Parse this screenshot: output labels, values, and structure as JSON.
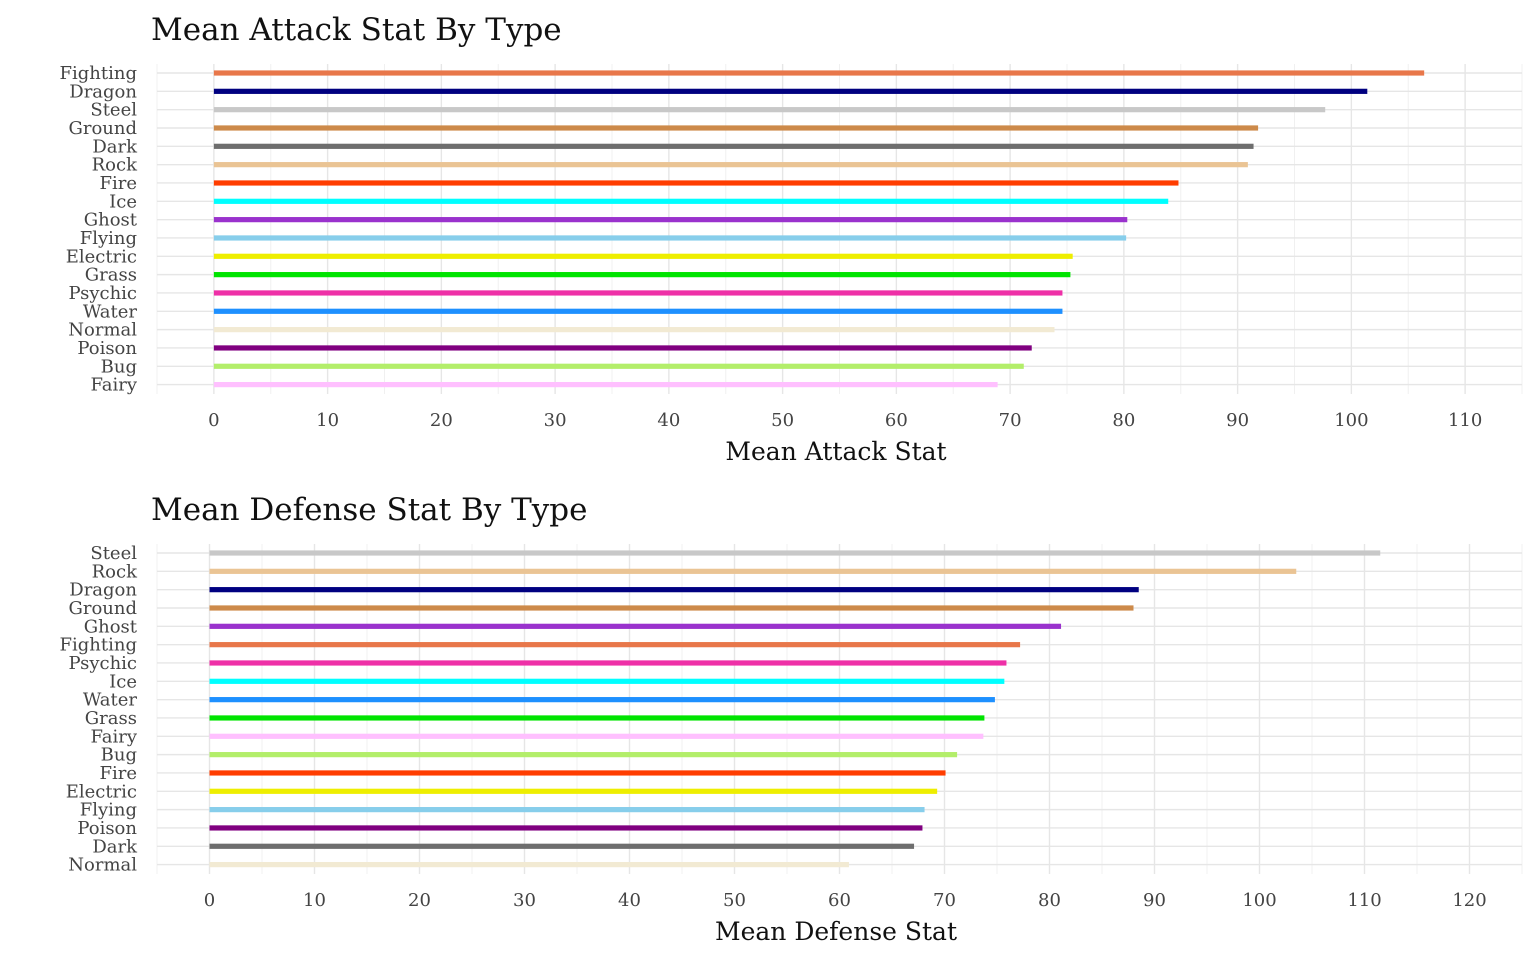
{
  "chart_data": [
    {
      "type": "bar",
      "orientation": "horizontal",
      "title": "Mean Attack Stat By Type",
      "xlabel": "Mean Attack Stat",
      "ylabel": "",
      "xlim": [
        -5,
        115
      ],
      "xticks": [
        "0",
        "10",
        "20",
        "30",
        "40",
        "50",
        "60",
        "70",
        "80",
        "90",
        "100",
        "110"
      ],
      "grid": true,
      "categories": [
        "Fighting",
        "Dragon",
        "Steel",
        "Ground",
        "Dark",
        "Rock",
        "Fire",
        "Ice",
        "Ghost",
        "Flying",
        "Electric",
        "Grass",
        "Psychic",
        "Water",
        "Normal",
        "Poison",
        "Bug",
        "Fairy"
      ],
      "values": [
        106.4,
        101.4,
        97.7,
        91.8,
        91.4,
        90.9,
        84.8,
        83.9,
        80.3,
        80.2,
        75.5,
        75.3,
        74.6,
        74.6,
        73.9,
        71.9,
        71.2,
        68.9
      ],
      "colors": [
        "#E8774A",
        "#000080",
        "#C8C8C8",
        "#CD8A4A",
        "#6E6E6E",
        "#EAC494",
        "#FF3D00",
        "#00FFFF",
        "#9A32CD",
        "#87CEEB",
        "#EEEE00",
        "#00E400",
        "#EE30A7",
        "#1E90FF",
        "#F2EAD3",
        "#800080",
        "#B3EE6A",
        "#FFC0FF"
      ]
    },
    {
      "type": "bar",
      "orientation": "horizontal",
      "title": "Mean Defense Stat By Type",
      "xlabel": "Mean Defense Stat",
      "ylabel": "",
      "xlim": [
        -5,
        125
      ],
      "xticks": [
        "0",
        "10",
        "20",
        "30",
        "40",
        "50",
        "60",
        "70",
        "80",
        "90",
        "100",
        "110",
        "120"
      ],
      "grid": true,
      "categories": [
        "Steel",
        "Rock",
        "Dragon",
        "Ground",
        "Ghost",
        "Fighting",
        "Psychic",
        "Ice",
        "Water",
        "Grass",
        "Fairy",
        "Bug",
        "Fire",
        "Electric",
        "Flying",
        "Poison",
        "Dark",
        "Normal"
      ],
      "values": [
        111.5,
        103.5,
        88.5,
        88.0,
        81.1,
        77.2,
        75.9,
        75.7,
        74.8,
        73.8,
        73.7,
        71.2,
        70.1,
        69.3,
        68.1,
        67.9,
        67.1,
        60.9
      ],
      "colors": [
        "#C8C8C8",
        "#EAC494",
        "#000080",
        "#CD8A4A",
        "#9A32CD",
        "#E8774A",
        "#EE30A7",
        "#00FFFF",
        "#1E90FF",
        "#00E400",
        "#FFC0FF",
        "#B3EE6A",
        "#FF3D00",
        "#EEEE00",
        "#87CEEB",
        "#800080",
        "#6E6E6E",
        "#F2EAD3"
      ]
    }
  ]
}
